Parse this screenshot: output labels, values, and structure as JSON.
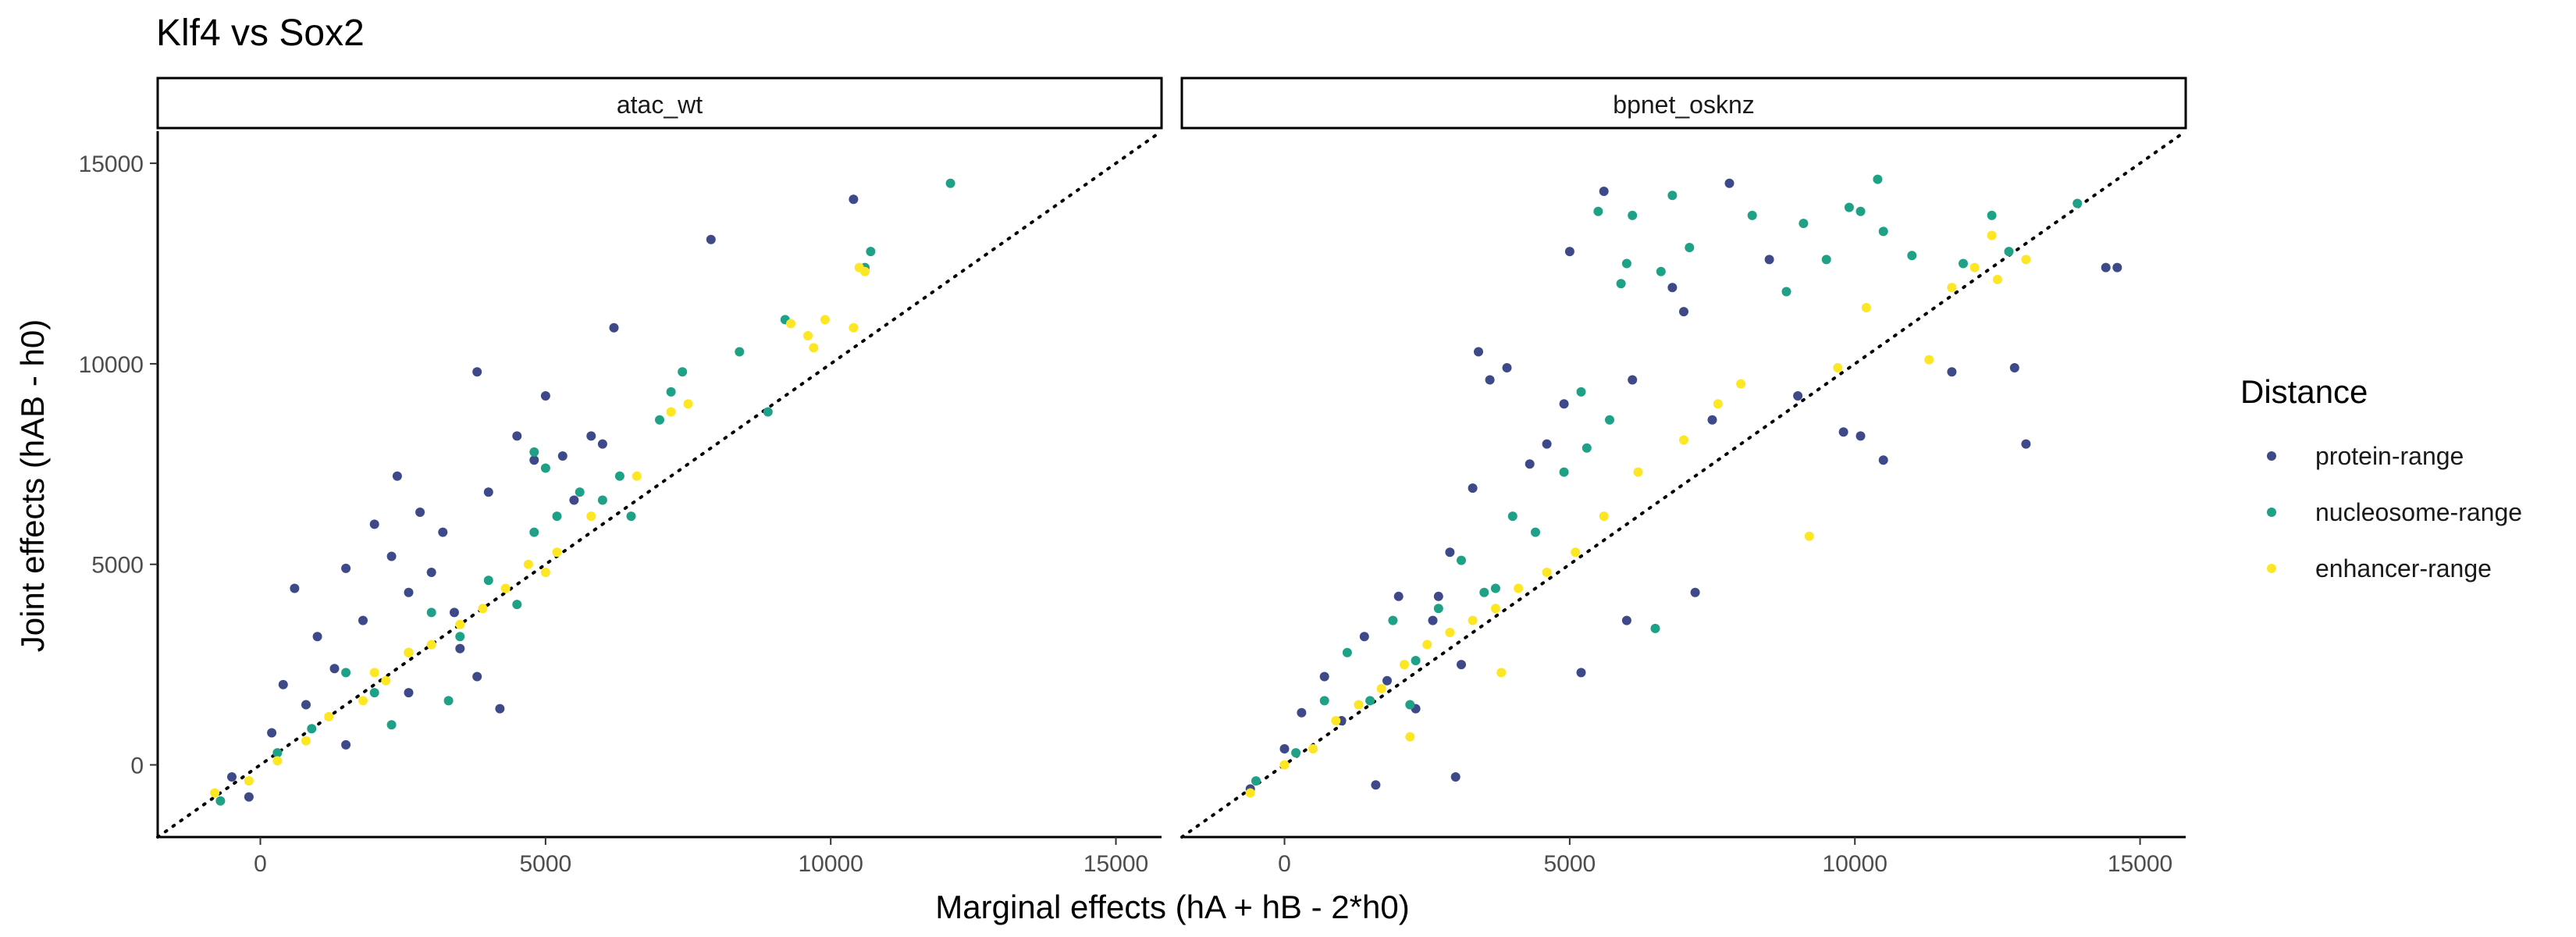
{
  "chart_data": {
    "type": "scatter",
    "title": "Klf4 vs Sox2",
    "xlabel": "Marginal effects (hA + hB - 2*h0)",
    "ylabel": "Joint effects (hAB - h0)",
    "xlim": [
      -1800,
      15800
    ],
    "ylim": [
      -1800,
      15800
    ],
    "x_ticks": [
      0,
      5000,
      10000,
      15000
    ],
    "y_ticks": [
      0,
      5000,
      10000,
      15000
    ],
    "reference_line": "y = x (dotted)",
    "grid": false,
    "legend": {
      "title": "Distance",
      "position": "right",
      "entries": [
        {
          "label": "protein-range",
          "color": "#3e4989"
        },
        {
          "label": "nucleosome-range",
          "color": "#1fa187"
        },
        {
          "label": "enhancer-range",
          "color": "#fde725"
        }
      ]
    },
    "panels": [
      {
        "title": "atac_wt",
        "series": [
          {
            "name": "protein-range",
            "color": "#3e4989",
            "points": [
              [
                -500,
                -300
              ],
              [
                200,
                800
              ],
              [
                400,
                2000
              ],
              [
                600,
                4400
              ],
              [
                800,
                1500
              ],
              [
                1000,
                3200
              ],
              [
                1300,
                2400
              ],
              [
                1500,
                4900
              ],
              [
                1800,
                3600
              ],
              [
                2000,
                6000
              ],
              [
                2300,
                5200
              ],
              [
                2600,
                4300
              ],
              [
                2800,
                6300
              ],
              [
                3000,
                4800
              ],
              [
                3200,
                5800
              ],
              [
                3400,
                3800
              ],
              [
                3800,
                9800
              ],
              [
                4000,
                6800
              ],
              [
                4500,
                8200
              ],
              [
                4800,
                7600
              ],
              [
                5000,
                9200
              ],
              [
                5300,
                7700
              ],
              [
                5800,
                8200
              ],
              [
                6200,
                10900
              ],
              [
                6000,
                8000
              ],
              [
                7900,
                13100
              ],
              [
                10400,
                14100
              ],
              [
                2600,
                1800
              ],
              [
                3800,
                2200
              ],
              [
                1500,
                500
              ],
              [
                -200,
                -800
              ],
              [
                4200,
                1400
              ],
              [
                5500,
                6600
              ],
              [
                2400,
                7200
              ],
              [
                3500,
                2900
              ]
            ]
          },
          {
            "name": "nucleosome-range",
            "color": "#1fa187",
            "points": [
              [
                -700,
                -900
              ],
              [
                300,
                300
              ],
              [
                900,
                900
              ],
              [
                1500,
                2300
              ],
              [
                2000,
                1800
              ],
              [
                2600,
                2800
              ],
              [
                3000,
                3800
              ],
              [
                3500,
                3200
              ],
              [
                4000,
                4600
              ],
              [
                4500,
                4000
              ],
              [
                4800,
                5800
              ],
              [
                5200,
                6200
              ],
              [
                5600,
                6800
              ],
              [
                6000,
                6600
              ],
              [
                6300,
                7200
              ],
              [
                7000,
                8600
              ],
              [
                7200,
                9300
              ],
              [
                7400,
                9800
              ],
              [
                8400,
                10300
              ],
              [
                8900,
                8800
              ],
              [
                9200,
                11100
              ],
              [
                10600,
                12400
              ],
              [
                10700,
                12800
              ],
              [
                12100,
                14500
              ],
              [
                6500,
                6200
              ],
              [
                4800,
                7800
              ],
              [
                5000,
                7400
              ],
              [
                2300,
                1000
              ],
              [
                3300,
                1600
              ]
            ]
          },
          {
            "name": "enhancer-range",
            "color": "#fde725",
            "points": [
              [
                -800,
                -700
              ],
              [
                -200,
                -400
              ],
              [
                300,
                100
              ],
              [
                800,
                600
              ],
              [
                1200,
                1200
              ],
              [
                1800,
                1600
              ],
              [
                2200,
                2100
              ],
              [
                2600,
                2800
              ],
              [
                3000,
                3000
              ],
              [
                3500,
                3500
              ],
              [
                3900,
                3900
              ],
              [
                4300,
                4400
              ],
              [
                4700,
                5000
              ],
              [
                5200,
                5300
              ],
              [
                5800,
                6200
              ],
              [
                6600,
                7200
              ],
              [
                7200,
                8800
              ],
              [
                7500,
                9000
              ],
              [
                9300,
                11000
              ],
              [
                9600,
                10700
              ],
              [
                9700,
                10400
              ],
              [
                9900,
                11100
              ],
              [
                10400,
                10900
              ],
              [
                10500,
                12400
              ],
              [
                10600,
                12300
              ],
              [
                5000,
                4800
              ],
              [
                2000,
                2300
              ]
            ]
          }
        ]
      },
      {
        "title": "bpnet_osknz",
        "series": [
          {
            "name": "protein-range",
            "color": "#3e4989",
            "points": [
              [
                -600,
                -600
              ],
              [
                0,
                400
              ],
              [
                300,
                1300
              ],
              [
                700,
                2200
              ],
              [
                1000,
                1100
              ],
              [
                1400,
                3200
              ],
              [
                1800,
                2100
              ],
              [
                2000,
                4200
              ],
              [
                2300,
                1400
              ],
              [
                2600,
                3600
              ],
              [
                2900,
                5300
              ],
              [
                3100,
                2500
              ],
              [
                3400,
                10300
              ],
              [
                3300,
                6900
              ],
              [
                3600,
                9600
              ],
              [
                3900,
                9900
              ],
              [
                4300,
                7500
              ],
              [
                4600,
                8000
              ],
              [
                4900,
                9000
              ],
              [
                5000,
                12800
              ],
              [
                5600,
                14300
              ],
              [
                6100,
                9600
              ],
              [
                6800,
                11900
              ],
              [
                7000,
                11300
              ],
              [
                7500,
                8600
              ],
              [
                7800,
                14500
              ],
              [
                8500,
                12600
              ],
              [
                9000,
                9200
              ],
              [
                9800,
                8300
              ],
              [
                10100,
                8200
              ],
              [
                10500,
                7600
              ],
              [
                11700,
                9800
              ],
              [
                12800,
                9900
              ],
              [
                13000,
                8000
              ],
              [
                14400,
                12400
              ],
              [
                14600,
                12400
              ],
              [
                2700,
                4200
              ],
              [
                3000,
                -300
              ],
              [
                1600,
                -500
              ],
              [
                5200,
                2300
              ],
              [
                6000,
                3600
              ],
              [
                7200,
                4300
              ]
            ]
          },
          {
            "name": "nucleosome-range",
            "color": "#1fa187",
            "points": [
              [
                -500,
                -400
              ],
              [
                200,
                300
              ],
              [
                700,
                1600
              ],
              [
                1100,
                2800
              ],
              [
                1500,
                1600
              ],
              [
                1900,
                3600
              ],
              [
                2300,
                2600
              ],
              [
                2700,
                3900
              ],
              [
                3100,
                5100
              ],
              [
                3500,
                4300
              ],
              [
                4000,
                6200
              ],
              [
                4400,
                5800
              ],
              [
                4900,
                7300
              ],
              [
                5300,
                7900
              ],
              [
                5700,
                8600
              ],
              [
                5900,
                12000
              ],
              [
                6000,
                12500
              ],
              [
                6600,
                12300
              ],
              [
                5500,
                13800
              ],
              [
                6100,
                13700
              ],
              [
                6800,
                14200
              ],
              [
                7100,
                12900
              ],
              [
                8200,
                13700
              ],
              [
                8800,
                11800
              ],
              [
                9100,
                13500
              ],
              [
                9500,
                12600
              ],
              [
                9900,
                13900
              ],
              [
                10100,
                13800
              ],
              [
                10400,
                14600
              ],
              [
                10500,
                13300
              ],
              [
                11000,
                12700
              ],
              [
                11900,
                12500
              ],
              [
                12400,
                13700
              ],
              [
                12700,
                12800
              ],
              [
                13900,
                14000
              ],
              [
                5200,
                9300
              ],
              [
                6500,
                3400
              ],
              [
                2200,
                1500
              ],
              [
                3700,
                4400
              ]
            ]
          },
          {
            "name": "enhancer-range",
            "color": "#fde725",
            "points": [
              [
                -600,
                -700
              ],
              [
                0,
                0
              ],
              [
                500,
                400
              ],
              [
                900,
                1100
              ],
              [
                1300,
                1500
              ],
              [
                1700,
                1900
              ],
              [
                2100,
                2500
              ],
              [
                2500,
                3000
              ],
              [
                2900,
                3300
              ],
              [
                3300,
                3600
              ],
              [
                3700,
                3900
              ],
              [
                4100,
                4400
              ],
              [
                4600,
                4800
              ],
              [
                5100,
                5300
              ],
              [
                5600,
                6200
              ],
              [
                6200,
                7300
              ],
              [
                7000,
                8100
              ],
              [
                7600,
                9000
              ],
              [
                8000,
                9500
              ],
              [
                9200,
                5700
              ],
              [
                9700,
                9900
              ],
              [
                10200,
                11400
              ],
              [
                11300,
                10100
              ],
              [
                11700,
                11900
              ],
              [
                12100,
                12400
              ],
              [
                12400,
                13200
              ],
              [
                12500,
                12100
              ],
              [
                13000,
                12600
              ],
              [
                3800,
                2300
              ],
              [
                2200,
                700
              ]
            ]
          }
        ]
      }
    ]
  }
}
